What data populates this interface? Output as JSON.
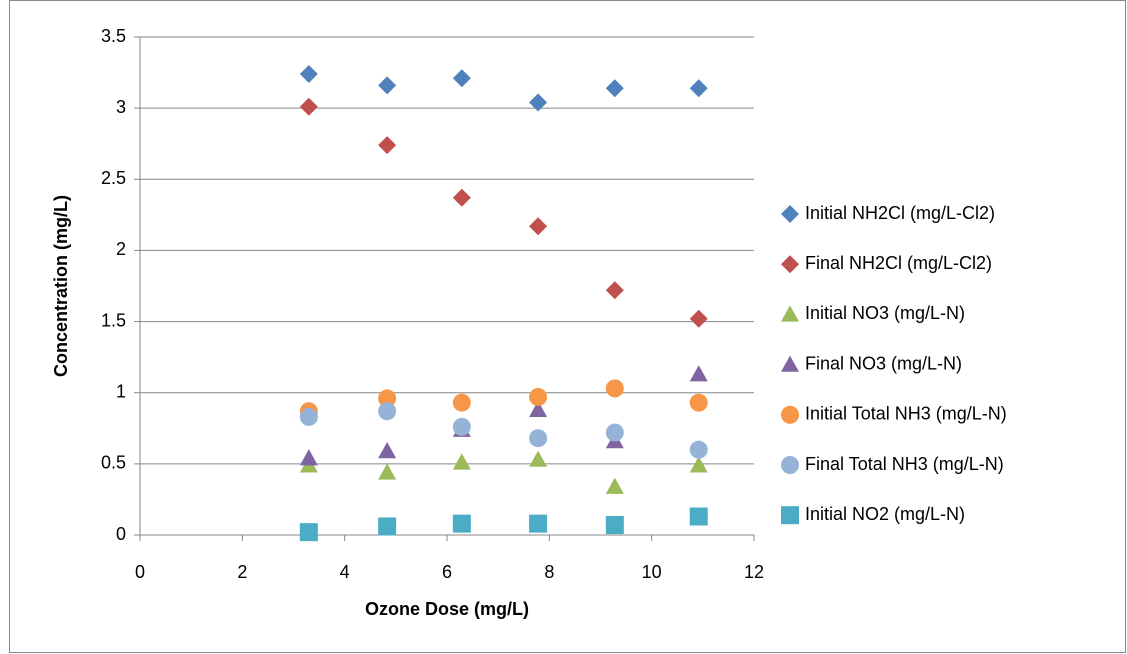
{
  "chart_data": {
    "type": "scatter",
    "x_label": "Ozone Dose (mg/L)",
    "y_label": "Concentration (mg/L)",
    "x": [
      3.3,
      4.83,
      6.29,
      7.78,
      9.28,
      10.92
    ],
    "series": [
      {
        "name": "Initial NH2Cl (mg/L-Cl2)",
        "color": "#4f81bd",
        "marker": "diamond",
        "values": [
          3.24,
          3.16,
          3.21,
          3.04,
          3.14,
          3.14
        ]
      },
      {
        "name": "Final NH2Cl (mg/L-Cl2)",
        "color": "#c0504d",
        "marker": "diamond",
        "values": [
          3.01,
          2.74,
          2.37,
          2.17,
          1.72,
          1.52
        ]
      },
      {
        "name": "Initial NO3 (mg/L-N)",
        "color": "#9bbb59",
        "marker": "triangle",
        "values": [
          0.49,
          0.44,
          0.51,
          0.53,
          0.34,
          0.49
        ]
      },
      {
        "name": "Final NO3 (mg/L-N)",
        "color": "#8064a2",
        "marker": "triangle",
        "values": [
          0.54,
          0.59,
          0.74,
          0.88,
          0.66,
          1.13
        ]
      },
      {
        "name": "Initial Total NH3 (mg/L-N)",
        "color": "#f79646",
        "marker": "circle",
        "values": [
          0.87,
          0.96,
          0.93,
          0.97,
          1.03,
          0.93
        ]
      },
      {
        "name": "Final Total NH3 (mg/L-N)",
        "color": "#95b3d7",
        "marker": "circle",
        "values": [
          0.83,
          0.87,
          0.76,
          0.68,
          0.72,
          0.6
        ]
      },
      {
        "name": "Initial NO2 (mg/L-N)",
        "color": "#4bacc6",
        "marker": "square",
        "values": [
          0.02,
          0.06,
          0.08,
          0.08,
          0.07,
          0.13
        ]
      }
    ],
    "xlim": [
      0,
      12
    ],
    "xticks": [
      0,
      2,
      4,
      6,
      8,
      10,
      12
    ],
    "ylim": [
      0,
      3.5
    ],
    "yticks": [
      0,
      0.5,
      1,
      1.5,
      2,
      2.5,
      3,
      3.5
    ],
    "grid": true,
    "legend": "right"
  }
}
